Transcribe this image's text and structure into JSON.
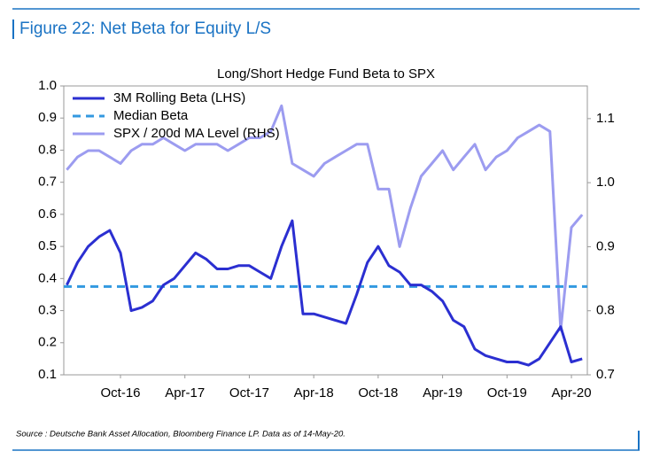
{
  "header": "Figure 22: Net Beta for Equity L/S",
  "source": "Source : Deutsche Bank Asset Allocation, Bloomberg Finance LP. Data as of 14-May-20.",
  "chart_data": {
    "type": "line",
    "title": "Long/Short Hedge Fund Beta to SPX",
    "x": [
      "May-16",
      "Jun-16",
      "Jul-16",
      "Aug-16",
      "Sep-16",
      "Oct-16",
      "Nov-16",
      "Dec-16",
      "Jan-17",
      "Feb-17",
      "Mar-17",
      "Apr-17",
      "May-17",
      "Jun-17",
      "Jul-17",
      "Aug-17",
      "Sep-17",
      "Oct-17",
      "Nov-17",
      "Dec-17",
      "Jan-18",
      "Feb-18",
      "Mar-18",
      "Apr-18",
      "May-18",
      "Jun-18",
      "Jul-18",
      "Aug-18",
      "Sep-18",
      "Oct-18",
      "Nov-18",
      "Dec-18",
      "Jan-19",
      "Feb-19",
      "Mar-19",
      "Apr-19",
      "May-19",
      "Jun-19",
      "Jul-19",
      "Aug-19",
      "Sep-19",
      "Oct-19",
      "Nov-19",
      "Dec-19",
      "Jan-20",
      "Feb-20",
      "Mar-20",
      "Apr-20",
      "May-20"
    ],
    "xticks": [
      "Oct-16",
      "Apr-17",
      "Oct-17",
      "Apr-18",
      "Oct-18",
      "Apr-19",
      "Oct-19",
      "Apr-20"
    ],
    "ylim": [
      0.1,
      1.0
    ],
    "yticks": [
      0.1,
      0.2,
      0.3,
      0.4,
      0.5,
      0.6,
      0.7,
      0.8,
      0.9,
      {
        "value": 1,
        "label": "1.0"
      }
    ],
    "y2lim": [
      0.7,
      1.151
    ],
    "y2ticks": [
      0.7,
      0.8,
      0.9,
      {
        "value": 1,
        "label": "1.0"
      },
      1.1
    ],
    "series": [
      {
        "name": "3M Rolling Beta (LHS)",
        "color": "#2b2fd1",
        "values": [
          0.38,
          0.45,
          0.5,
          0.53,
          0.55,
          0.48,
          0.3,
          0.31,
          0.33,
          0.38,
          0.4,
          0.44,
          0.48,
          0.46,
          0.43,
          0.43,
          0.44,
          0.44,
          0.42,
          0.4,
          0.5,
          0.58,
          0.29,
          0.29,
          0.28,
          0.27,
          0.26,
          0.35,
          0.45,
          0.5,
          0.44,
          0.42,
          0.38,
          0.38,
          0.36,
          0.33,
          0.27,
          0.25,
          0.18,
          0.16,
          0.15,
          0.14,
          0.14,
          0.13,
          0.15,
          0.2,
          0.25,
          0.14,
          0.15
        ]
      },
      {
        "name": "Median Beta",
        "color": "#3399e0",
        "value": 0.375,
        "dashed": true
      },
      {
        "name": "SPX / 200d MA Level (RHS)",
        "color": "#9c9cf0",
        "axis": "y2",
        "values": [
          1.02,
          1.04,
          1.05,
          1.05,
          1.04,
          1.03,
          1.05,
          1.06,
          1.06,
          1.07,
          1.06,
          1.05,
          1.06,
          1.06,
          1.06,
          1.05,
          1.06,
          1.07,
          1.07,
          1.08,
          1.12,
          1.03,
          1.02,
          1.01,
          1.03,
          1.04,
          1.05,
          1.06,
          1.06,
          0.99,
          0.99,
          0.9,
          0.96,
          1.01,
          1.03,
          1.05,
          1.02,
          1.04,
          1.06,
          1.02,
          1.04,
          1.05,
          1.07,
          1.08,
          1.09,
          1.08,
          0.77,
          0.93,
          0.95
        ]
      }
    ]
  }
}
